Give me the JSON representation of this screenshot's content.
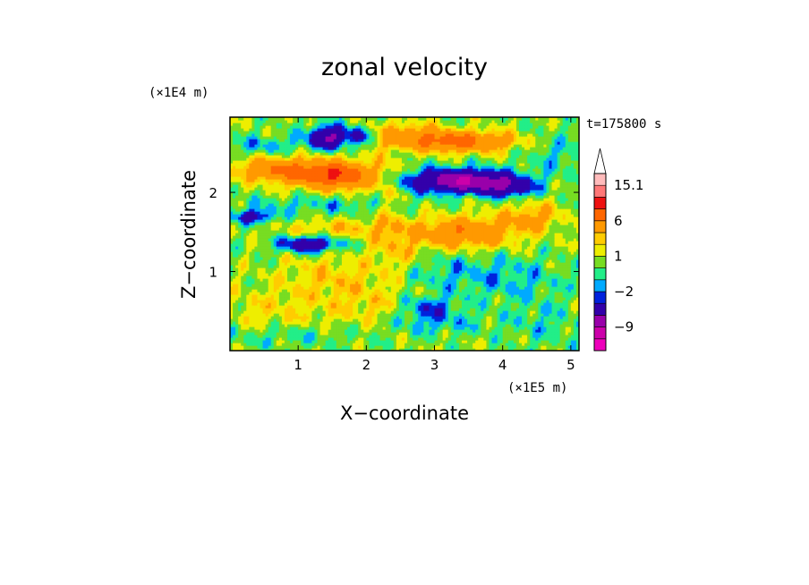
{
  "chart_data": {
    "type": "heatmap",
    "title": "zonal velocity",
    "xlabel": "X−coordinate",
    "ylabel": "Z−coordinate",
    "x_scale_label": "(×1E5 m)",
    "y_scale_label": "(×1E4 m)",
    "time_label": "t=175800 s",
    "xlim": [
      0,
      5.12
    ],
    "ylim": [
      0,
      2.95
    ],
    "x_ticks": [
      1,
      2,
      3,
      4,
      5
    ],
    "x_tick_labels": [
      "1",
      "2",
      "3",
      "4",
      "5"
    ],
    "y_ticks": [
      1,
      2
    ],
    "y_tick_labels": [
      "1",
      "2"
    ],
    "colorbar": {
      "levels": [
        -15.1,
        -12,
        -9,
        -6,
        -3,
        -2,
        -1,
        0,
        1,
        2,
        3,
        6,
        9,
        12,
        15.1
      ],
      "colors": [
        "#ee00bb",
        "#cc00aa",
        "#9900aa",
        "#3300aa",
        "#0022dd",
        "#00aaff",
        "#22ee88",
        "#77dd22",
        "#eeee00",
        "#ffcc00",
        "#ff9900",
        "#ff6600",
        "#ee1111",
        "#ff7777",
        "#ffbbbb"
      ],
      "labels": [
        {
          "value": 15.1,
          "text": "15.1"
        },
        {
          "value": 6,
          "text": "6"
        },
        {
          "value": 1,
          "text": "1"
        },
        {
          "value": -2,
          "text": "−2"
        },
        {
          "value": -9,
          "text": "−9"
        }
      ],
      "extend_top": true
    },
    "field": {
      "background_value": 0.5,
      "features": [
        {
          "x": 1.3,
          "z": 2.25,
          "sx": 0.45,
          "sz": 0.12,
          "v": 6.5
        },
        {
          "x": 0.55,
          "z": 2.3,
          "sx": 0.35,
          "sz": 0.1,
          "v": 4
        },
        {
          "x": 1.7,
          "z": 2.2,
          "sx": 0.3,
          "sz": 0.12,
          "v": 4
        },
        {
          "x": 3.35,
          "z": 2.65,
          "sx": 0.55,
          "sz": 0.09,
          "v": 7
        },
        {
          "x": 2.65,
          "z": 2.75,
          "sx": 0.3,
          "sz": 0.1,
          "v": 3
        },
        {
          "x": 3.4,
          "z": 2.15,
          "sx": 0.55,
          "sz": 0.1,
          "v": -9.5
        },
        {
          "x": 4.1,
          "z": 2.05,
          "sx": 0.25,
          "sz": 0.08,
          "v": -4
        },
        {
          "x": 3.5,
          "z": 1.5,
          "sx": 0.5,
          "sz": 0.14,
          "v": 5
        },
        {
          "x": 4.45,
          "z": 1.7,
          "sx": 0.3,
          "sz": 0.12,
          "v": 3
        },
        {
          "x": 1.45,
          "z": 2.7,
          "sx": 0.22,
          "sz": 0.1,
          "v": -7
        },
        {
          "x": 1.9,
          "z": 2.72,
          "sx": 0.12,
          "sz": 0.08,
          "v": -3
        },
        {
          "x": 1.15,
          "z": 1.35,
          "sx": 0.3,
          "sz": 0.07,
          "v": -6
        },
        {
          "x": 0.35,
          "z": 1.7,
          "sx": 0.22,
          "sz": 0.06,
          "v": -4.5
        },
        {
          "x": 1.4,
          "z": 1.85,
          "sx": 0.9,
          "sz": 0.08,
          "v": -1.5
        },
        {
          "x": 1.6,
          "z": 1.55,
          "sx": 0.6,
          "sz": 0.08,
          "v": 2
        },
        {
          "x": 0.5,
          "z": 2.6,
          "sx": 0.35,
          "sz": 0.08,
          "v": -2
        },
        {
          "x": 3.0,
          "z": 1.0,
          "sx": 0.7,
          "sz": 0.2,
          "v": -1.6
        },
        {
          "x": 4.2,
          "z": 0.9,
          "sx": 0.5,
          "sz": 0.2,
          "v": -1.4
        },
        {
          "x": 2.9,
          "z": 0.55,
          "sx": 0.3,
          "sz": 0.1,
          "v": -3
        },
        {
          "x": 3.0,
          "z": 0.35,
          "sx": 0.5,
          "sz": 0.1,
          "v": -1.8
        },
        {
          "x": 1.6,
          "z": 0.95,
          "sx": 0.6,
          "sz": 0.2,
          "v": 2
        },
        {
          "x": 2.1,
          "z": 0.55,
          "sx": 0.5,
          "sz": 0.2,
          "v": 1.4
        },
        {
          "x": 0.6,
          "z": 0.5,
          "sx": 0.6,
          "sz": 0.2,
          "v": 1.3
        },
        {
          "x": 0.8,
          "z": 0.2,
          "sx": 0.8,
          "sz": 0.1,
          "v": -1.3
        },
        {
          "x": 4.6,
          "z": 0.35,
          "sx": 0.4,
          "sz": 0.2,
          "v": -1.2
        },
        {
          "x": 4.8,
          "z": 2.5,
          "sx": 0.35,
          "sz": 0.2,
          "v": -1.3
        },
        {
          "x": 2.3,
          "z": 2.1,
          "sx": 0.15,
          "sz": 0.5,
          "v": 1.3
        },
        {
          "x": 2.5,
          "z": 1.3,
          "sx": 0.3,
          "sz": 0.25,
          "v": 2
        }
      ]
    }
  }
}
